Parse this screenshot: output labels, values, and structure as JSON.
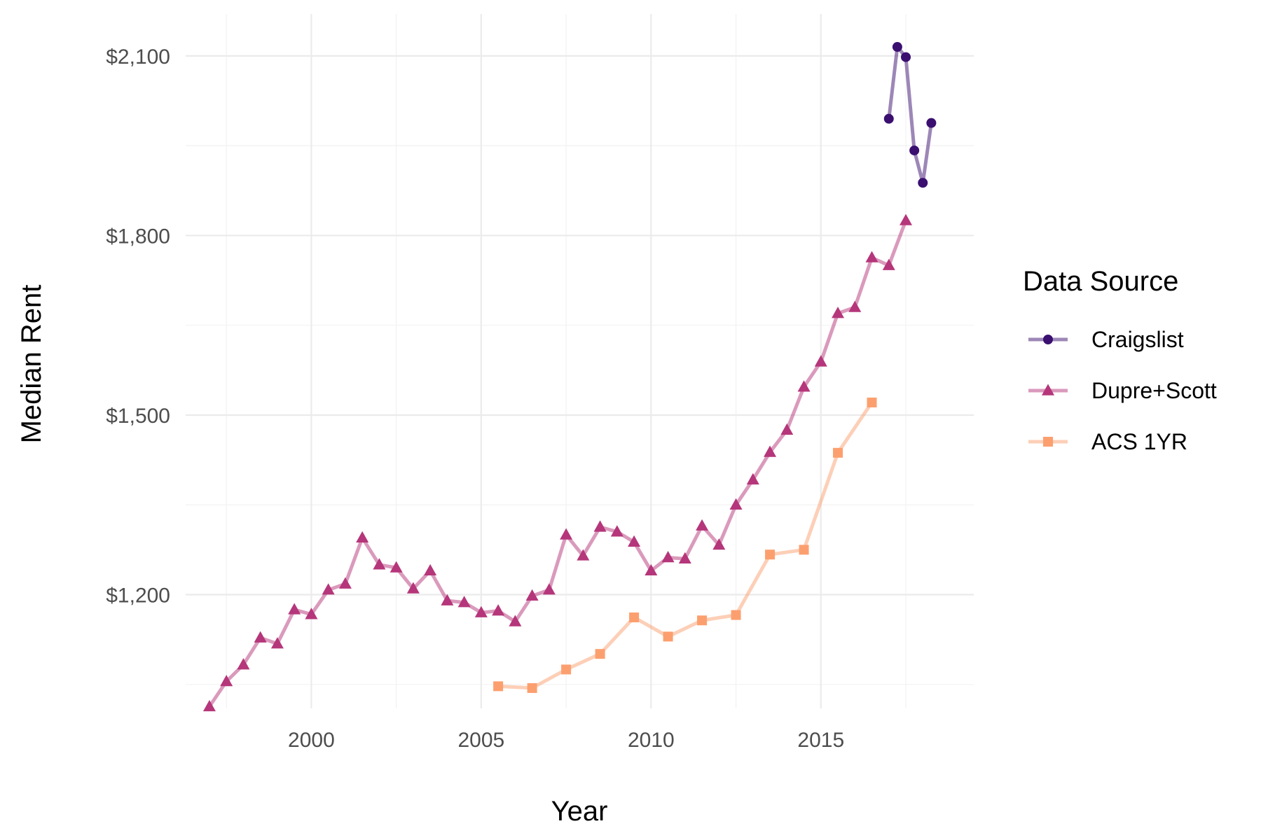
{
  "chart_data": {
    "type": "line",
    "title": "",
    "xlabel": "Year",
    "ylabel": "Median Rent",
    "xlim": [
      1996.3,
      2019.5
    ],
    "ylim": [
      1010,
      2170
    ],
    "x_ticks": [
      2000,
      2005,
      2010,
      2015
    ],
    "y_ticks": [
      1200,
      1500,
      1800,
      2100
    ],
    "y_tick_labels": [
      "$1,200",
      "$1,500",
      "$1,800",
      "$2,100"
    ],
    "grid": true,
    "legend_position": "right",
    "legend_title": "Data Source",
    "series": [
      {
        "name": "Craigslist",
        "color": "#3b0f70",
        "marker": "circle",
        "x": [
          2017.0,
          2017.25,
          2017.5,
          2017.75,
          2018.0,
          2018.25
        ],
        "y": [
          1995,
          2115,
          2098,
          1942,
          1888,
          1988
        ]
      },
      {
        "name": "Dupre+Scott",
        "color": "#b5367a",
        "marker": "triangle",
        "x": [
          1997.0,
          1997.5,
          1998.0,
          1998.5,
          1999.0,
          1999.5,
          2000.0,
          2000.5,
          2001.0,
          2001.5,
          2002.0,
          2002.5,
          2003.0,
          2003.5,
          2004.0,
          2004.5,
          2005.0,
          2005.5,
          2006.0,
          2006.5,
          2007.0,
          2007.5,
          2008.0,
          2008.5,
          2009.0,
          2009.5,
          2010.0,
          2010.5,
          2011.0,
          2011.5,
          2012.0,
          2012.5,
          2013.0,
          2013.5,
          2014.0,
          2014.5,
          2015.0,
          2015.5,
          2016.0,
          2016.5,
          2017.0,
          2017.5
        ],
        "y": [
          1013,
          1055,
          1083,
          1128,
          1118,
          1175,
          1167,
          1208,
          1218,
          1295,
          1250,
          1245,
          1210,
          1240,
          1190,
          1187,
          1170,
          1173,
          1155,
          1198,
          1208,
          1300,
          1265,
          1313,
          1305,
          1288,
          1240,
          1262,
          1260,
          1315,
          1283,
          1350,
          1392,
          1438,
          1475,
          1547,
          1589,
          1670,
          1680,
          1763,
          1750,
          1825
        ]
      },
      {
        "name": "ACS 1YR",
        "color": "#fc9f6f",
        "marker": "square",
        "x": [
          2005.5,
          2006.5,
          2007.5,
          2008.5,
          2009.5,
          2010.5,
          2011.5,
          2012.5,
          2013.5,
          2014.5,
          2015.5,
          2016.5
        ],
        "y": [
          1047,
          1044,
          1075,
          1101,
          1162,
          1130,
          1157,
          1166,
          1267,
          1275,
          1437,
          1521
        ]
      }
    ]
  }
}
